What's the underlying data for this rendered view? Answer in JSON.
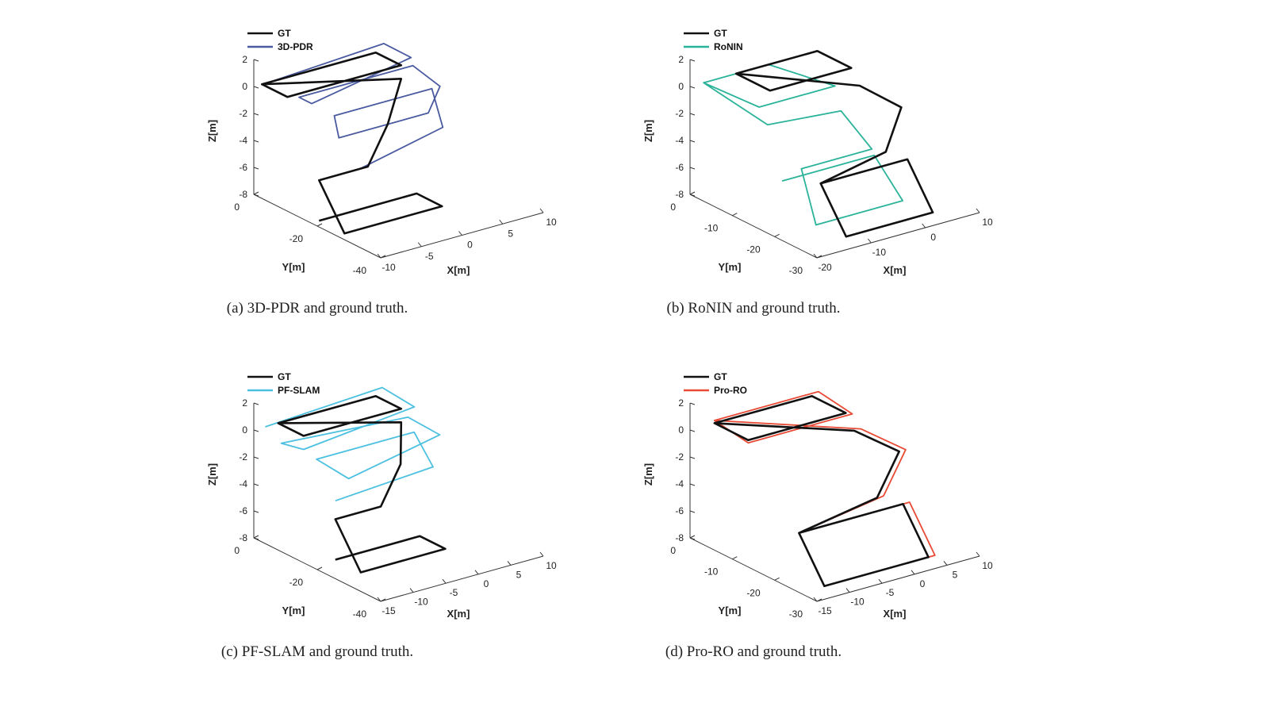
{
  "chart_data": [
    {
      "type": "line",
      "caption": "(a) 3D-PDR and ground truth.",
      "legend": [
        {
          "name": "GT",
          "color": "#111111"
        },
        {
          "name": "3D-PDR",
          "color": "#4a5aa0"
        }
      ],
      "zlabel": "Z[m]",
      "ylabel": "Y[m]",
      "xlabel": "X[m]",
      "zticks": [
        "2",
        "0",
        "-2",
        "-4",
        "-6",
        "-8"
      ],
      "yticks": [
        "0",
        "-20",
        "-40"
      ],
      "xticks": [
        "-10",
        "-5",
        "0",
        "5",
        "10"
      ],
      "zlim": [
        -8,
        2
      ],
      "ylim": [
        -40,
        0
      ],
      "xlim": [
        -10,
        10
      ],
      "series": [
        {
          "name": "GT",
          "color": "#111111",
          "x": [
            -8,
            6,
            6,
            -8,
            -8,
            6,
            2,
            -2,
            -2,
            -8,
            -8,
            4,
            4,
            -8
          ],
          "y": [
            0,
            0,
            -8,
            -8,
            0,
            -8,
            -14,
            -18,
            -18,
            -18,
            -26,
            -26,
            -18,
            -18
          ],
          "z": [
            0,
            0,
            0,
            0,
            0,
            -1,
            -3,
            -5,
            -5,
            -5,
            -8,
            -8,
            -8,
            -8
          ]
        },
        {
          "name": "3D-PDR",
          "color": "#4a5aa0",
          "x": [
            -7,
            7,
            8,
            -5,
            -5,
            9,
            10,
            7,
            -4,
            -3,
            9,
            8,
            -3
          ],
          "y": [
            0,
            0,
            -6,
            -8,
            -4,
            -4,
            -10,
            -14,
            -14,
            -10,
            -10,
            -16,
            -18
          ],
          "z": [
            0,
            0.5,
            0,
            -1,
            -1,
            -1,
            -2,
            -3,
            -3,
            -2,
            -2,
            -4,
            -5
          ]
        }
      ]
    },
    {
      "type": "line",
      "caption": "(b) RoNIN and ground truth.",
      "legend": [
        {
          "name": "GT",
          "color": "#111111"
        },
        {
          "name": "RoNIN",
          "color": "#2bb39a"
        }
      ],
      "zlabel": "Z[m]",
      "ylabel": "Y[m]",
      "xlabel": "X[m]",
      "zticks": [
        "2",
        "0",
        "-2",
        "-4",
        "-6",
        "-8"
      ],
      "yticks": [
        "0",
        "-10",
        "-20",
        "-30"
      ],
      "xticks": [
        "-20",
        "-10",
        "0",
        "10"
      ],
      "zlim": [
        -8,
        2
      ],
      "ylim": [
        -30,
        0
      ],
      "xlim": [
        -20,
        10
      ],
      "series": [
        {
          "name": "GT",
          "color": "#111111",
          "x": [
            -10,
            5,
            5,
            -10,
            -10,
            5,
            8,
            2,
            -10,
            -10,
            6,
            6,
            -10
          ],
          "y": [
            0,
            0,
            -8,
            -8,
            0,
            -10,
            -16,
            -20,
            -20,
            -26,
            -26,
            -20,
            -20
          ],
          "z": [
            0,
            0,
            0,
            0,
            0,
            -1,
            -2,
            -4,
            -5,
            -8,
            -8,
            -5,
            -5
          ]
        },
        {
          "name": "RoNIN",
          "color": "#2bb39a",
          "x": [
            -16,
            -4,
            2,
            -12,
            -16,
            -12,
            0,
            1,
            -12,
            -14,
            2,
            3,
            -14
          ],
          "y": [
            0,
            0,
            -8,
            -8,
            0,
            -10,
            -12,
            -18,
            -18,
            -24,
            -24,
            -16,
            -16
          ],
          "z": [
            0,
            0,
            -1,
            -1,
            0,
            -2,
            -2,
            -4,
            -4,
            -7,
            -7,
            -5,
            -5
          ]
        }
      ]
    },
    {
      "type": "line",
      "caption": "(c) PF-SLAM and ground truth.",
      "legend": [
        {
          "name": "GT",
          "color": "#111111"
        },
        {
          "name": "PF-SLAM",
          "color": "#4cc0e0"
        }
      ],
      "zlabel": "Z[m]",
      "ylabel": "Y[m]",
      "xlabel": "X[m]",
      "zticks": [
        "2",
        "0",
        "-2",
        "-4",
        "-6",
        "-8"
      ],
      "yticks": [
        "0",
        "-20",
        "-40"
      ],
      "xticks": [
        "-15",
        "-10",
        "-5",
        "0",
        "5",
        "10"
      ],
      "zlim": [
        -8,
        2
      ],
      "ylim": [
        -40,
        0
      ],
      "xlim": [
        -15,
        10
      ],
      "series": [
        {
          "name": "GT",
          "color": "#111111",
          "x": [
            -10,
            5,
            5,
            -10,
            -10,
            5,
            2,
            -3,
            -10,
            -10,
            3,
            3,
            -10
          ],
          "y": [
            0,
            0,
            -8,
            -8,
            0,
            -8,
            -14,
            -18,
            -18,
            -26,
            -26,
            -18,
            -18
          ],
          "z": [
            0,
            0,
            0,
            0,
            0,
            -1,
            -3,
            -5,
            -5,
            -8,
            -8,
            -8,
            -8
          ]
        },
        {
          "name": "PF-SLAM",
          "color": "#4cc0e0",
          "x": [
            -12,
            6,
            8,
            -10,
            -11,
            8,
            9,
            -6,
            -8,
            7,
            6,
            -9
          ],
          "y": [
            0,
            0,
            -6,
            -8,
            -3,
            -4,
            -12,
            -14,
            -8,
            -8,
            -16,
            -16
          ],
          "z": [
            0,
            0.5,
            -0.5,
            -1,
            -1,
            -1.5,
            -2,
            -3,
            -2,
            -2,
            -3.5,
            -4
          ]
        }
      ]
    },
    {
      "type": "line",
      "caption": "(d) Pro-RO and ground truth.",
      "legend": [
        {
          "name": "GT",
          "color": "#111111"
        },
        {
          "name": "Pro-RO",
          "color": "#e84a35"
        }
      ],
      "zlabel": "Z[m]",
      "ylabel": "Y[m]",
      "xlabel": "X[m]",
      "zticks": [
        "2",
        "0",
        "-2",
        "-4",
        "-6",
        "-8"
      ],
      "yticks": [
        "0",
        "-10",
        "-20",
        "-30"
      ],
      "xticks": [
        "-15",
        "-10",
        "-5",
        "0",
        "5",
        "10"
      ],
      "zlim": [
        -8,
        2
      ],
      "ylim": [
        -30,
        0
      ],
      "xlim": [
        -15,
        10
      ],
      "series": [
        {
          "name": "GT",
          "color": "#111111",
          "x": [
            -10,
            5,
            5,
            -10,
            -10,
            5,
            8,
            2,
            -10,
            -10,
            6,
            6,
            -10
          ],
          "y": [
            0,
            0,
            -8,
            -8,
            0,
            -10,
            -16,
            -20,
            -20,
            -26,
            -26,
            -20,
            -20
          ],
          "z": [
            0,
            0,
            0,
            0,
            0,
            -1,
            -2,
            -4,
            -5,
            -8,
            -8,
            -5,
            -5
          ]
        },
        {
          "name": "Pro-RO",
          "color": "#e84a35",
          "x": [
            -10,
            6,
            6,
            -10,
            -10,
            6,
            9,
            3,
            -10,
            -10,
            7,
            7,
            -10
          ],
          "y": [
            0,
            0,
            -8,
            -8,
            0,
            -10,
            -16,
            -20,
            -20,
            -26,
            -26,
            -20,
            -20
          ],
          "z": [
            0.2,
            0.2,
            -0.2,
            -0.2,
            0.2,
            -1,
            -2,
            -4,
            -5,
            -8,
            -8,
            -5,
            -5
          ]
        }
      ]
    }
  ]
}
